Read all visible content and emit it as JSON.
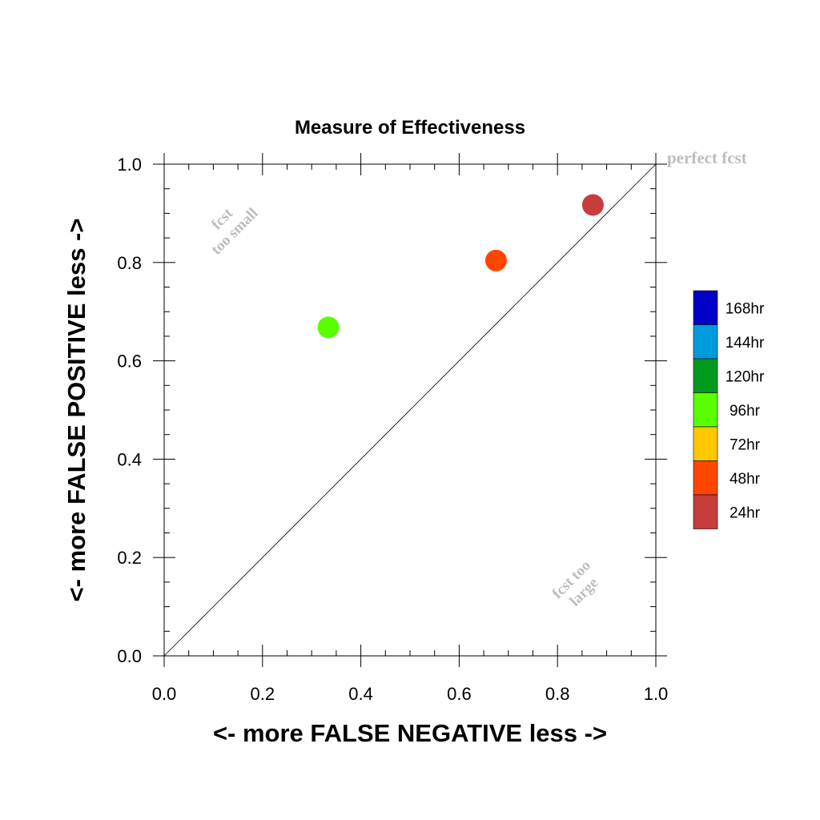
{
  "chart_data": {
    "type": "scatter",
    "title": "Measure of Effectiveness",
    "xlabel": "<- more   FALSE NEGATIVE   less ->",
    "ylabel": "<- more   FALSE POSITIVE   less ->",
    "xlim": [
      0,
      1
    ],
    "ylim": [
      0,
      1
    ],
    "xticks": [
      "0.0",
      "0.2",
      "0.4",
      "0.6",
      "0.8",
      "1.0"
    ],
    "yticks": [
      "0.0",
      "0.2",
      "0.4",
      "0.6",
      "0.8",
      "1.0"
    ],
    "grid": false,
    "reference_line": {
      "from": [
        0,
        0
      ],
      "to": [
        1,
        1
      ]
    },
    "annotations": {
      "perfect": "perfect fcst",
      "too_small": [
        "fcst",
        "too small"
      ],
      "too_large": [
        "fcst too",
        "large"
      ]
    },
    "legend": {
      "placement": "right",
      "entries": [
        {
          "label": "168hr",
          "color": "#0000c8"
        },
        {
          "label": "144hr",
          "color": "#009bdc"
        },
        {
          "label": "120hr",
          "color": "#009a1e"
        },
        {
          "label": "96hr",
          "color": "#5aff00"
        },
        {
          "label": "72hr",
          "color": "#ffc800"
        },
        {
          "label": "48hr",
          "color": "#ff4600"
        },
        {
          "label": "24hr",
          "color": "#c83c3c"
        }
      ]
    },
    "points": [
      {
        "lead": "96hr",
        "x": 0.334,
        "y": 0.668,
        "color": "#5aff00"
      },
      {
        "lead": "48hr",
        "x": 0.675,
        "y": 0.804,
        "color": "#ff4600"
      },
      {
        "lead": "24hr",
        "x": 0.872,
        "y": 0.917,
        "color": "#c83c3c"
      }
    ]
  }
}
